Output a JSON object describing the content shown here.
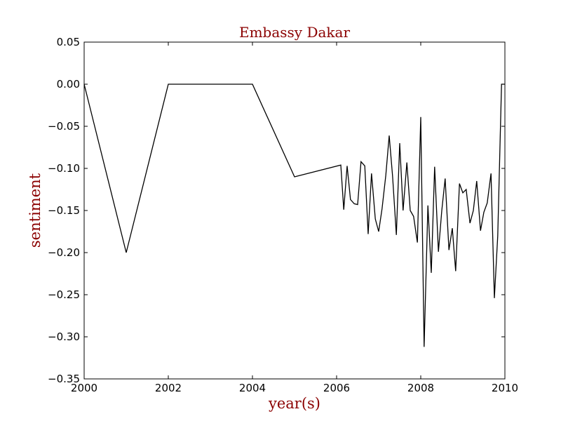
{
  "chart_data": {
    "type": "line",
    "title": "Embassy Dakar",
    "xlabel": "year(s)",
    "ylabel": "sentiment",
    "xlim": [
      2000,
      2010
    ],
    "ylim": [
      -0.35,
      0.05
    ],
    "xticks": [
      2000,
      2002,
      2004,
      2006,
      2008,
      2010
    ],
    "yticks": [
      0.05,
      0.0,
      -0.05,
      -0.1,
      -0.15,
      -0.2,
      -0.25,
      -0.3,
      -0.35
    ],
    "xtick_labels": [
      "2000",
      "2002",
      "2004",
      "2006",
      "2008",
      "2010"
    ],
    "ytick_labels": [
      "0.05",
      "0.00",
      "−0.05",
      "−0.10",
      "−0.15",
      "−0.20",
      "−0.25",
      "−0.30",
      "−0.35"
    ],
    "grid": false,
    "colors": {
      "title": "#8b0000",
      "labels": "#8b0000",
      "line": "#000000"
    },
    "series": [
      {
        "x": [
          2000.0,
          2001.0,
          2002.0,
          2004.0,
          2005.0,
          2006.1,
          2006.17,
          2006.25,
          2006.33,
          2006.42,
          2006.5,
          2006.58,
          2006.67,
          2006.75,
          2006.83,
          2006.92,
          2007.0,
          2007.08,
          2007.17,
          2007.25,
          2007.33,
          2007.42,
          2007.5,
          2007.58,
          2007.67,
          2007.75,
          2007.83,
          2007.92,
          2008.0,
          2008.08,
          2008.17,
          2008.25,
          2008.33,
          2008.42,
          2008.5,
          2008.58,
          2008.67,
          2008.75,
          2008.83,
          2008.92,
          2009.0,
          2009.08,
          2009.17,
          2009.25,
          2009.33,
          2009.42,
          2009.5,
          2009.58,
          2009.67,
          2009.75,
          2009.83,
          2009.92,
          2010.0
        ],
        "y": [
          0.0,
          -0.2,
          0.0,
          0.0,
          -0.11,
          -0.096,
          -0.149,
          -0.097,
          -0.137,
          -0.142,
          -0.143,
          -0.092,
          -0.097,
          -0.178,
          -0.106,
          -0.16,
          -0.175,
          -0.148,
          -0.108,
          -0.061,
          -0.109,
          -0.179,
          -0.07,
          -0.15,
          -0.093,
          -0.15,
          -0.157,
          -0.188,
          -0.039,
          -0.312,
          -0.144,
          -0.224,
          -0.098,
          -0.199,
          -0.15,
          -0.112,
          -0.197,
          -0.171,
          -0.222,
          -0.118,
          -0.129,
          -0.125,
          -0.165,
          -0.15,
          -0.115,
          -0.174,
          -0.152,
          -0.141,
          -0.106,
          -0.254,
          -0.18,
          0.0,
          0.0
        ]
      }
    ]
  }
}
